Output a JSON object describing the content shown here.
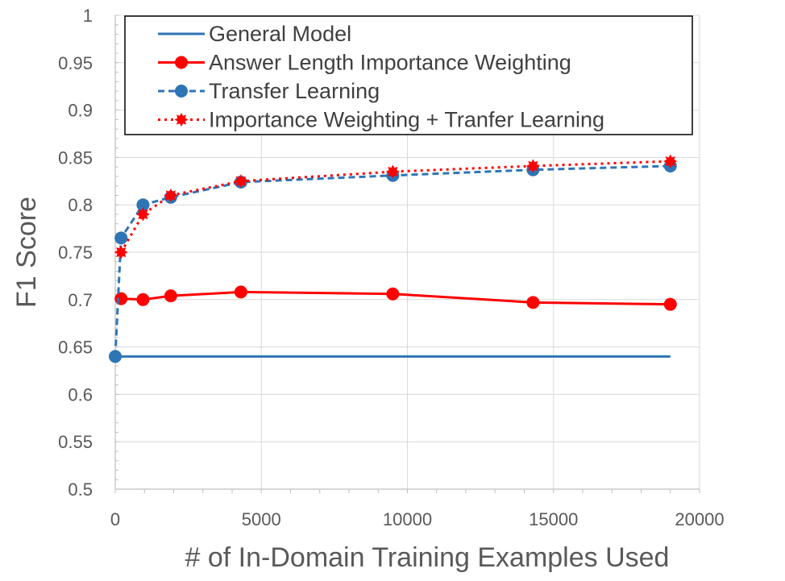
{
  "chart_data": {
    "type": "line",
    "title": "",
    "xlabel": "# of In-Domain Training Examples Used",
    "ylabel": "F1 Score",
    "xlim": [
      0,
      20000
    ],
    "ylim": [
      0.5,
      1
    ],
    "x_ticks": [
      "0",
      "5000",
      "10000",
      "15000",
      "20000"
    ],
    "y_ticks": [
      "0.5",
      "0.55",
      "0.6",
      "0.65",
      "0.7",
      "0.75",
      "0.8",
      "0.85",
      "0.9",
      "0.95",
      "1"
    ],
    "grid": true,
    "legend_position": "top",
    "series": [
      {
        "name": "General Model",
        "color": "#2E75B6",
        "line": "solid",
        "marker": "none",
        "points": [
          [
            0,
            0.64
          ],
          [
            19000,
            0.64
          ]
        ]
      },
      {
        "name": "Answer Length Importance Weighting",
        "color": "#FF0000",
        "line": "solid",
        "marker": "circle",
        "points": [
          [
            200,
            0.701
          ],
          [
            950,
            0.7
          ],
          [
            1900,
            0.704
          ],
          [
            4300,
            0.708
          ],
          [
            9500,
            0.706
          ],
          [
            14300,
            0.697
          ],
          [
            19000,
            0.695
          ]
        ]
      },
      {
        "name": "Transfer Learning",
        "color": "#2E75B6",
        "line": "dashed",
        "marker": "circle",
        "points": [
          [
            0,
            0.64
          ],
          [
            200,
            0.765
          ],
          [
            950,
            0.8
          ],
          [
            1900,
            0.808
          ],
          [
            4300,
            0.824
          ],
          [
            9500,
            0.831
          ],
          [
            14300,
            0.837
          ],
          [
            19000,
            0.841
          ]
        ]
      },
      {
        "name": "Importance Weighting + Tranfer Learning",
        "color": "#FF0000",
        "line": "dotted",
        "marker": "starburst",
        "points": [
          [
            200,
            0.75
          ],
          [
            950,
            0.79
          ],
          [
            1900,
            0.81
          ],
          [
            4300,
            0.825
          ],
          [
            9500,
            0.835
          ],
          [
            14300,
            0.841
          ],
          [
            19000,
            0.846
          ]
        ]
      }
    ]
  }
}
